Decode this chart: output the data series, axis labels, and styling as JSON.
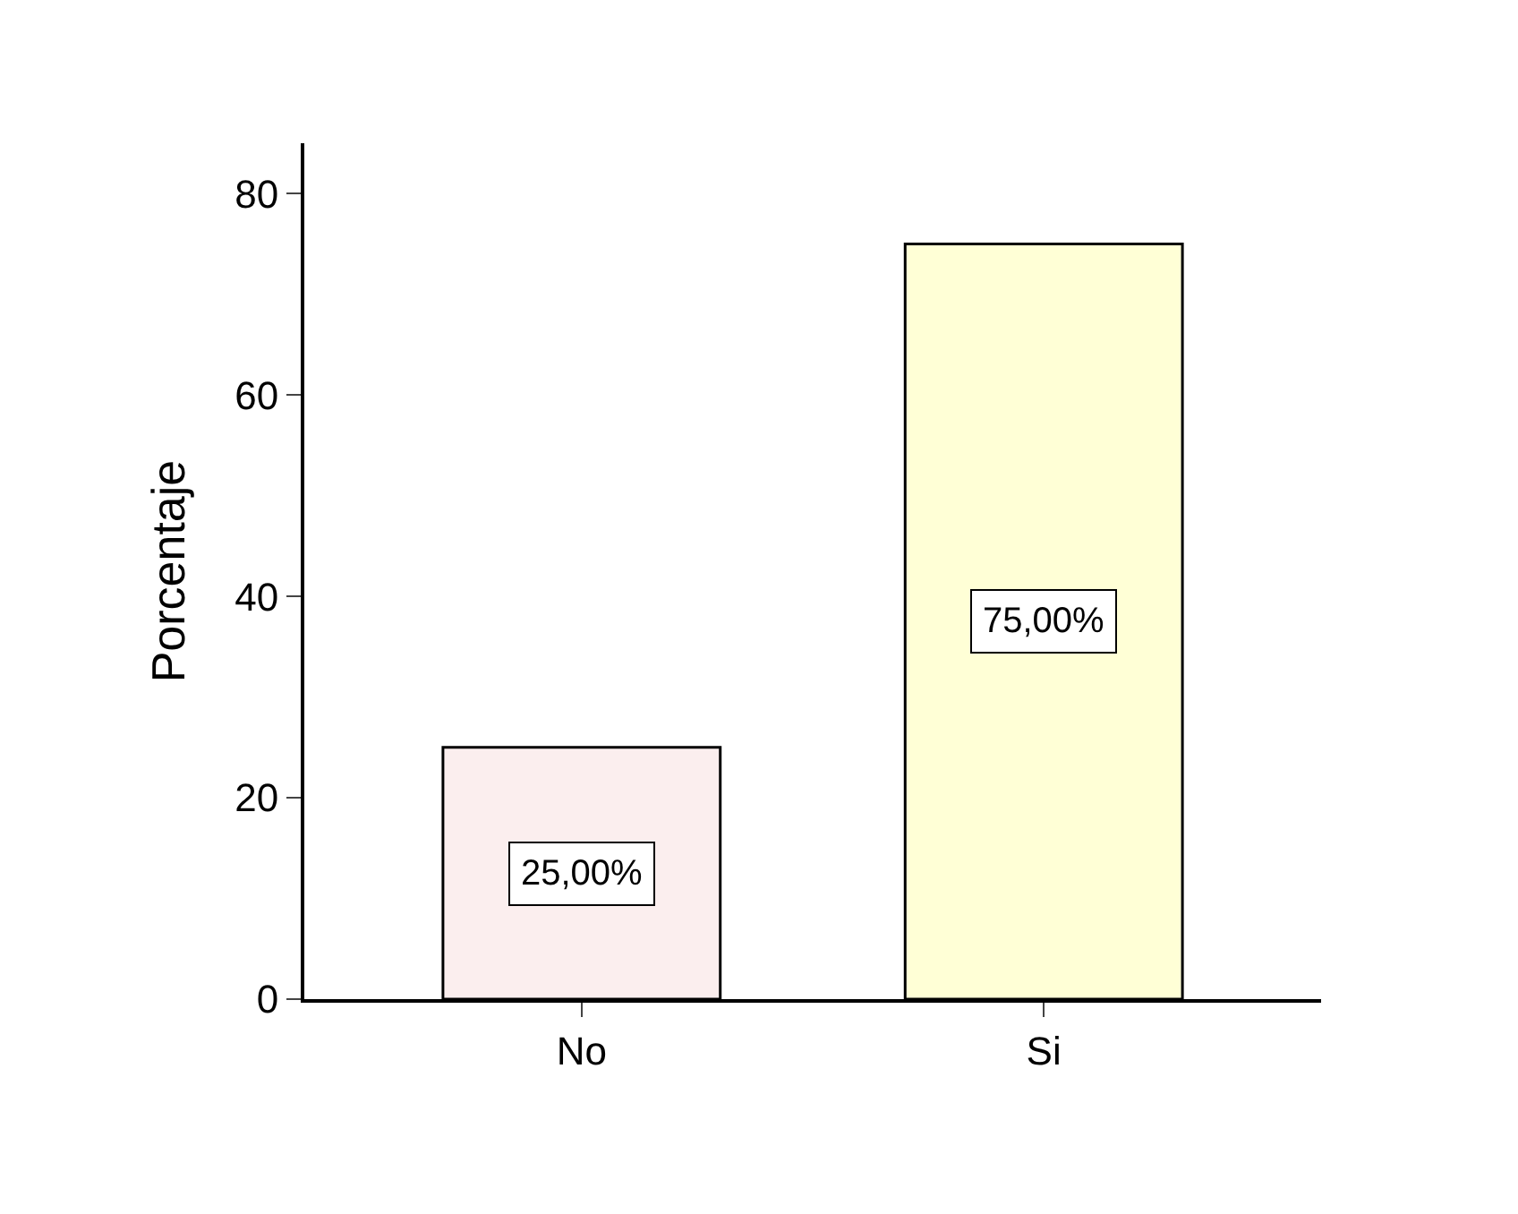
{
  "chart_data": {
    "type": "bar",
    "ylabel": "Porcentaje",
    "categories": [
      "No",
      "Si"
    ],
    "values": [
      25,
      75
    ],
    "colors": [
      "#fbeeee",
      "#ffffd6"
    ],
    "value_labels": [
      "25,00%",
      "75,00%"
    ],
    "ylim": [
      0,
      85
    ],
    "yticks": [
      0,
      20,
      40,
      60,
      80
    ],
    "grid": false,
    "legend": false
  }
}
